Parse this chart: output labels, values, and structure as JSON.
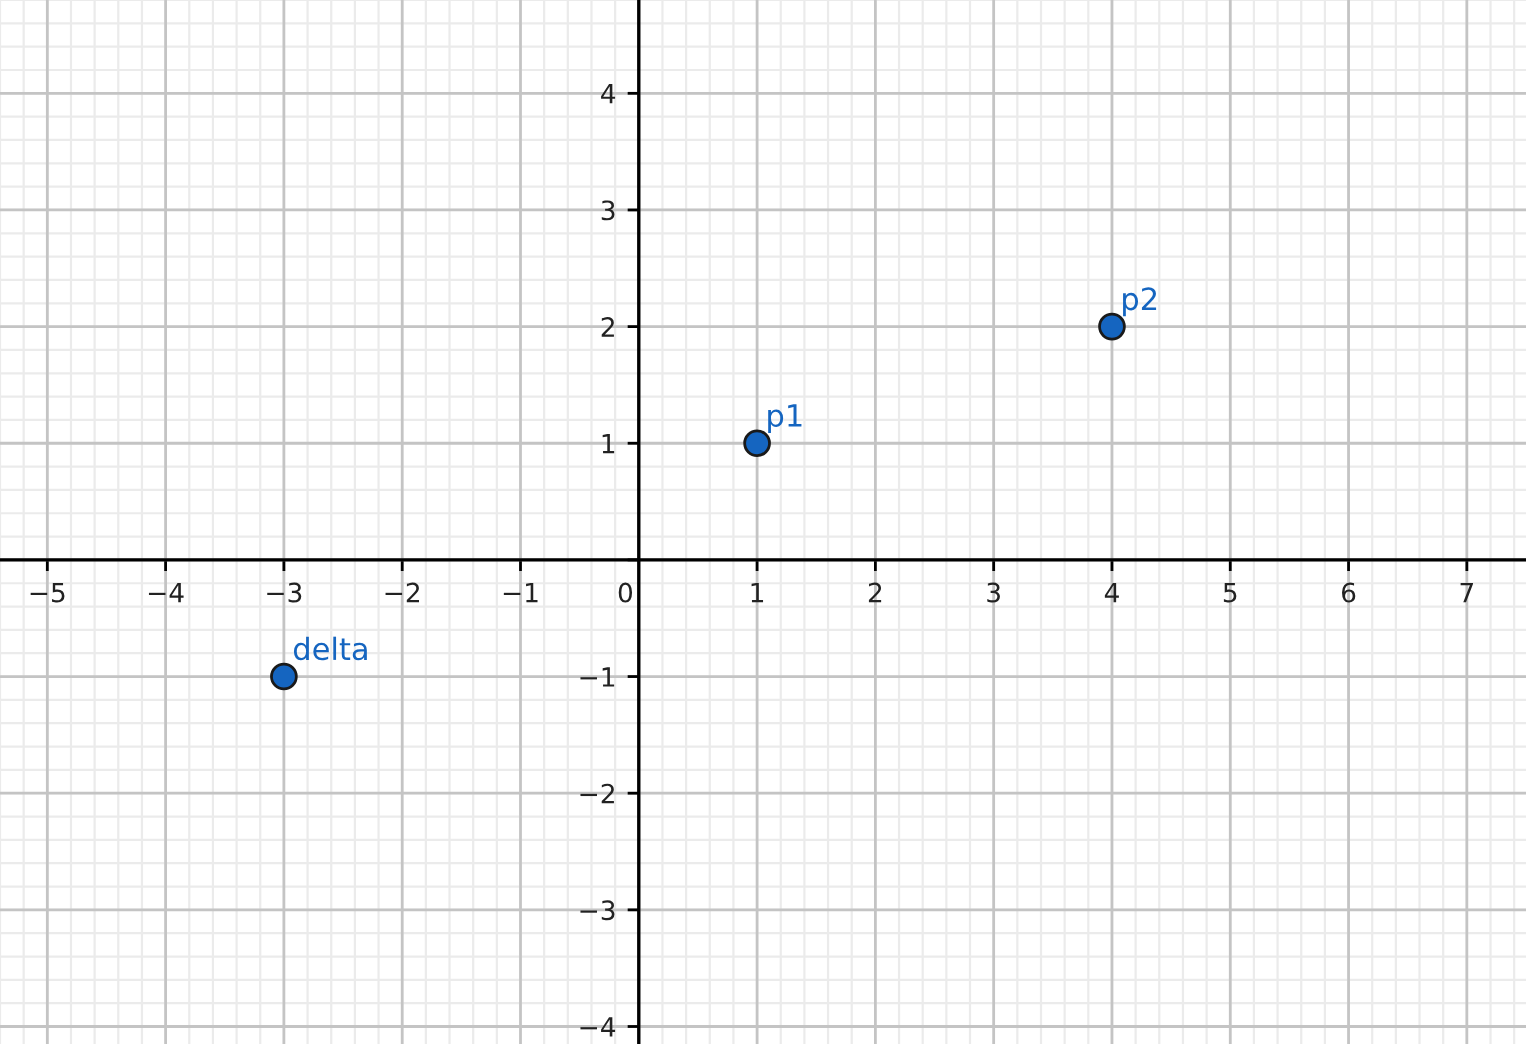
{
  "chart_data": {
    "type": "scatter",
    "x": [
      -3,
      1,
      4
    ],
    "values": [
      -1,
      1,
      2
    ],
    "color": "#1565c0",
    "marker": "circle",
    "annotations": [
      {
        "text": "delta",
        "x": -3,
        "y": -1
      },
      {
        "text": "p1",
        "x": 1,
        "y": 1
      },
      {
        "text": "p2",
        "x": 4,
        "y": 2
      }
    ],
    "xlim": [
      -5.4,
      7.5
    ],
    "ylim": [
      -4.15,
      4.8
    ],
    "xticks": [
      {
        "value": -5,
        "label": "−5"
      },
      {
        "value": -4,
        "label": "−4"
      },
      {
        "value": -3,
        "label": "−3"
      },
      {
        "value": -2,
        "label": "−2"
      },
      {
        "value": -1,
        "label": "−1"
      },
      0,
      1,
      2,
      3,
      4,
      5,
      6,
      7
    ],
    "yticks": [
      {
        "value": -4,
        "label": "−4"
      },
      {
        "value": -3,
        "label": "−3"
      },
      {
        "value": -2,
        "label": "−2"
      },
      {
        "value": -1,
        "label": "−1"
      },
      {
        "value": 0,
        "label": null
      },
      1,
      2,
      3,
      4
    ],
    "grid": true
  }
}
